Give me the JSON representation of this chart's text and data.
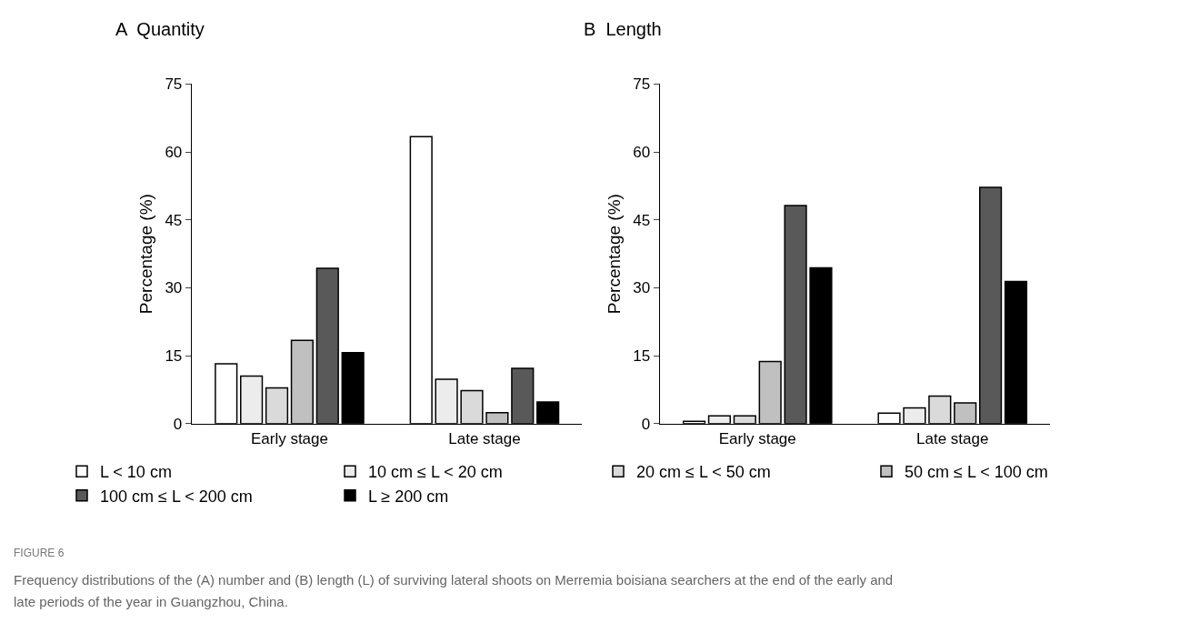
{
  "chart_data": [
    {
      "type": "bar",
      "title": "A  Quantity",
      "ylabel": "Percentage (%)",
      "categories": [
        "Early stage",
        "Late stage"
      ],
      "ylim": [
        0,
        75
      ],
      "yticks": [
        0,
        15,
        30,
        45,
        60,
        75
      ],
      "grid": false,
      "legend": "bottom",
      "series": [
        {
          "name": "L < 10 cm",
          "color": "#ffffff",
          "values": [
            13.2,
            63.4
          ]
        },
        {
          "name": "10 cm ≤ L < 20 cm",
          "color": "#ececec",
          "values": [
            10.5,
            9.8
          ]
        },
        {
          "name": "20 cm ≤ L < 50 cm",
          "color": "#dadada",
          "values": [
            7.9,
            7.3
          ]
        },
        {
          "name": "50 cm ≤ L < 100 cm",
          "color": "#c0c0c0",
          "values": [
            18.4,
            2.4
          ]
        },
        {
          "name": "100 cm ≤ L < 200 cm",
          "color": "#595959",
          "values": [
            34.3,
            12.2
          ]
        },
        {
          "name": "L ≥ 200 cm",
          "color": "#000000",
          "values": [
            15.7,
            4.8
          ]
        }
      ],
      "annotations": [
        "FIGURE 6",
        "Frequency distributions of the (A) number and (B) length (L) of surviving lateral shoots on Merremia boisiana searchers at the end of the early and",
        "late periods of the year in Guangzhou, China."
      ]
    },
    {
      "type": "bar",
      "title": "B  Length",
      "ylabel": "Percentage (%)",
      "categories": [
        "Early stage",
        "Late stage"
      ],
      "ylim": [
        0,
        75
      ],
      "yticks": [
        0,
        15,
        30,
        45,
        60,
        75
      ],
      "grid": false,
      "series": [
        {
          "color": "#ffffff",
          "values": [
            0.5,
            2.3
          ]
        },
        {
          "color": "#ececec",
          "values": [
            1.7,
            3.5
          ]
        },
        {
          "color": "#dadada",
          "values": [
            1.7,
            6.1
          ]
        },
        {
          "color": "#c0c0c0",
          "values": [
            13.7,
            4.6
          ]
        },
        {
          "color": "#595959",
          "values": [
            48.2,
            52.2
          ]
        },
        {
          "color": "#000000",
          "values": [
            34.4,
            31.4
          ]
        }
      ]
    }
  ]
}
